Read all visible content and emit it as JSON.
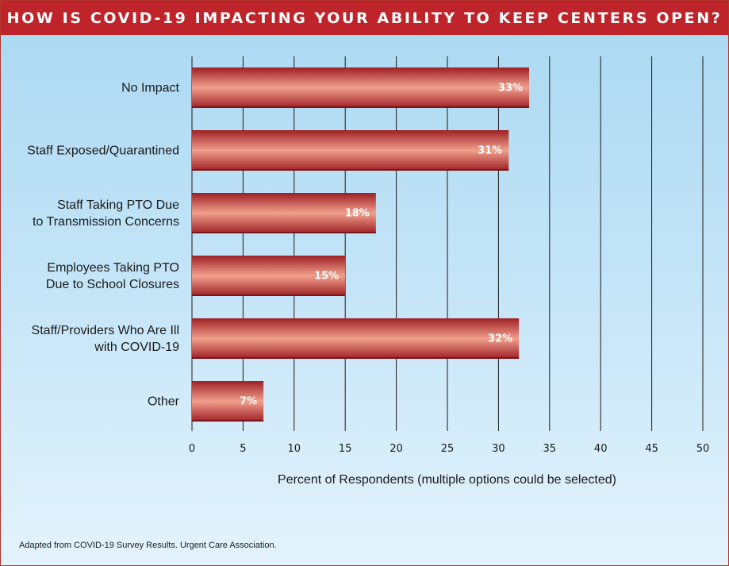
{
  "title": "HOW IS COVID-19 IMPACTING YOUR ABILITY TO KEEP CENTERS OPEN?",
  "source": "Adapted from COVID-19 Survey Results. Urgent Care Association.",
  "colors": {
    "title_bar": "#c0242b",
    "bar_dark": "#9e1f25",
    "bar_light": "#f1a08c",
    "background_top": "#a9d8f2",
    "background_bottom": "#e4f3fc"
  },
  "chart_data": {
    "type": "bar",
    "orientation": "horizontal",
    "title": "HOW IS COVID-19 IMPACTING YOUR ABILITY TO KEEP CENTERS OPEN?",
    "categories": [
      [
        "No Impact"
      ],
      [
        "Staff Exposed/Quarantined"
      ],
      [
        "Staff Taking PTO Due",
        "to Transmission Concerns"
      ],
      [
        "Employees Taking PTO",
        "Due to School Closures"
      ],
      [
        "Staff/Providers Who Are Ill",
        "with COVID-19"
      ],
      [
        "Other"
      ]
    ],
    "values": [
      33,
      31,
      18,
      15,
      32,
      7
    ],
    "value_labels": [
      "33%",
      "31%",
      "18%",
      "15%",
      "32%",
      "7%"
    ],
    "xlabel": "Percent of Respondents (multiple options could be selected)",
    "ylabel": "",
    "xlim": [
      0,
      50
    ],
    "xticks": [
      "0",
      "5",
      "10",
      "15",
      "20",
      "25",
      "30",
      "35",
      "40",
      "45",
      "50"
    ],
    "grid": "vertical",
    "legend": "none"
  }
}
